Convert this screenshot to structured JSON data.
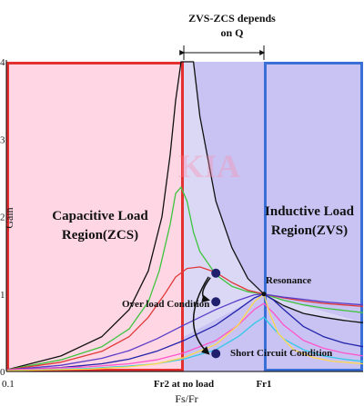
{
  "chart_data": {
    "type": "line",
    "title": "",
    "xlabel": "Fs/Fr",
    "ylabel": "Gain",
    "xlim": [
      0.1,
      1.5
    ],
    "ylim": [
      0,
      4
    ],
    "y_ticks": [
      "0",
      "1",
      "2",
      "3",
      "4"
    ],
    "x_ticks": [
      {
        "label": "0.1",
        "value": 0.1
      },
      {
        "label": "Fr2 at no load",
        "value": 0.75
      },
      {
        "label": "Fr1",
        "value": 1.0
      }
    ],
    "grid": false,
    "watermark": "KIA",
    "regions": [
      {
        "label": "Capacitive Load Region(ZCS)",
        "x": [
          0.1,
          0.75
        ],
        "fill": "#ffd7e4",
        "border": "#e53030"
      },
      {
        "label": "",
        "x": [
          0.75,
          1.0
        ],
        "fill": "#c8c3f2",
        "border": ""
      },
      {
        "label": "Inductive Load Region(ZVS)",
        "x": [
          1.0,
          1.5
        ],
        "fill": "#c8c3f2",
        "border": "#3a6fd8"
      }
    ],
    "annotations": {
      "top": "ZVS-ZCS depends on Q",
      "resonance": "Resonance",
      "over_load": "Over load Condition",
      "short_circuit": "Short Circuit Condition"
    },
    "resonance_point": {
      "x": 1.0,
      "y": 1.0
    },
    "markers": [
      {
        "x": 0.85,
        "y": 1.27
      },
      {
        "x": 0.85,
        "y": 0.9
      },
      {
        "x": 0.85,
        "y": 0.23
      }
    ],
    "series": [
      {
        "color": "#111111",
        "x": [
          0.1,
          0.3,
          0.45,
          0.55,
          0.62,
          0.67,
          0.7,
          0.72,
          0.74,
          0.75,
          0.76,
          0.78,
          0.8,
          0.85,
          0.9,
          0.95,
          1.0,
          1.1,
          1.2,
          1.3,
          1.4,
          1.5
        ],
        "y": [
          0.02,
          0.2,
          0.45,
          0.8,
          1.3,
          2.0,
          2.8,
          3.5,
          4.0,
          4.0,
          4.0,
          4.0,
          3.3,
          2.2,
          1.6,
          1.2,
          1.0,
          0.85,
          0.75,
          0.7,
          0.66,
          0.63
        ]
      },
      {
        "color": "#3ec43e",
        "x": [
          0.1,
          0.3,
          0.45,
          0.55,
          0.62,
          0.66,
          0.7,
          0.72,
          0.74,
          0.76,
          0.78,
          0.8,
          0.85,
          0.9,
          0.95,
          1.0,
          1.1,
          1.2,
          1.3,
          1.4,
          1.5
        ],
        "y": [
          0.02,
          0.15,
          0.32,
          0.55,
          0.9,
          1.3,
          1.9,
          2.3,
          2.38,
          2.2,
          1.8,
          1.55,
          1.25,
          1.1,
          1.03,
          1.0,
          0.92,
          0.86,
          0.82,
          0.79,
          0.76
        ]
      },
      {
        "color": "#e03838",
        "x": [
          0.1,
          0.3,
          0.45,
          0.55,
          0.62,
          0.68,
          0.72,
          0.76,
          0.8,
          0.85,
          0.9,
          0.95,
          1.0,
          1.1,
          1.2,
          1.3,
          1.4,
          1.5
        ],
        "y": [
          0.02,
          0.12,
          0.26,
          0.45,
          0.7,
          1.0,
          1.22,
          1.33,
          1.35,
          1.28,
          1.15,
          1.05,
          1.0,
          0.95,
          0.91,
          0.88,
          0.86,
          0.84
        ]
      },
      {
        "color": "#5a3ec8",
        "x": [
          0.1,
          0.3,
          0.45,
          0.55,
          0.65,
          0.75,
          0.85,
          0.92,
          0.97,
          1.0,
          1.05,
          1.1,
          1.2,
          1.3,
          1.4,
          1.5
        ],
        "y": [
          0.02,
          0.08,
          0.17,
          0.27,
          0.42,
          0.6,
          0.8,
          0.92,
          0.99,
          1.0,
          0.98,
          0.96,
          0.93,
          0.9,
          0.88,
          0.86
        ]
      },
      {
        "color": "#2222aa",
        "x": [
          0.1,
          0.3,
          0.45,
          0.55,
          0.65,
          0.75,
          0.85,
          0.92,
          0.97,
          1.0,
          1.05,
          1.1,
          1.2,
          1.3,
          1.4,
          1.5
        ],
        "y": [
          0.02,
          0.05,
          0.1,
          0.16,
          0.26,
          0.4,
          0.6,
          0.8,
          0.95,
          1.0,
          0.92,
          0.8,
          0.58,
          0.45,
          0.37,
          0.32
        ]
      },
      {
        "color": "#ff55cc",
        "x": [
          0.1,
          0.4,
          0.55,
          0.65,
          0.75,
          0.85,
          0.92,
          0.97,
          1.0,
          1.05,
          1.1,
          1.2,
          1.3,
          1.4,
          1.5
        ],
        "y": [
          0.02,
          0.06,
          0.1,
          0.15,
          0.24,
          0.4,
          0.6,
          0.8,
          0.88,
          0.75,
          0.6,
          0.4,
          0.3,
          0.24,
          0.2
        ]
      },
      {
        "color": "#33c8e8",
        "x": [
          0.1,
          0.4,
          0.55,
          0.65,
          0.75,
          0.85,
          0.92,
          0.97,
          1.0,
          1.05,
          1.1,
          1.2,
          1.3,
          1.4,
          1.5
        ],
        "y": [
          0.01,
          0.04,
          0.07,
          0.1,
          0.16,
          0.28,
          0.45,
          0.62,
          0.7,
          0.55,
          0.42,
          0.28,
          0.2,
          0.16,
          0.13
        ]
      },
      {
        "color": "#ffd84a",
        "x": [
          0.1,
          0.4,
          0.55,
          0.65,
          0.75,
          0.85,
          0.92,
          0.97,
          1.0,
          1.03,
          1.07,
          1.15,
          1.25,
          1.35,
          1.5
        ],
        "y": [
          0.01,
          0.03,
          0.06,
          0.1,
          0.18,
          0.35,
          0.6,
          0.9,
          1.0,
          0.75,
          0.5,
          0.28,
          0.18,
          0.13,
          0.1
        ]
      }
    ]
  }
}
